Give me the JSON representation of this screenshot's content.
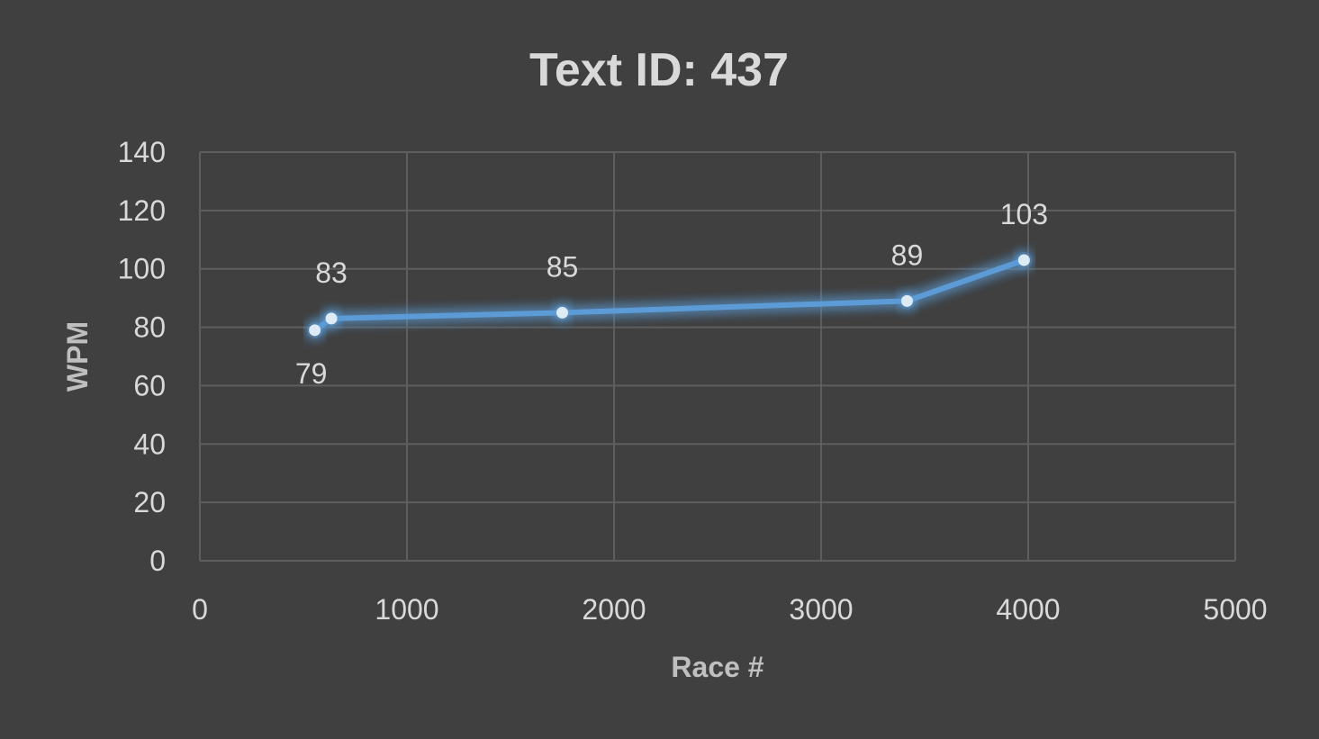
{
  "chart_data": {
    "type": "line",
    "title": "Text ID: 437",
    "xlabel": "Race #",
    "ylabel": "WPM",
    "xlim": [
      0,
      5000
    ],
    "ylim": [
      0,
      140
    ],
    "xticks": [
      "0",
      "1000",
      "2000",
      "3000",
      "4000",
      "5000"
    ],
    "yticks": [
      "0",
      "20",
      "40",
      "60",
      "80",
      "100",
      "120",
      "140"
    ],
    "grid": true,
    "series": [
      {
        "x": [
          555,
          635,
          1750,
          3415,
          3980
        ],
        "y": [
          79,
          83,
          85,
          89,
          103
        ],
        "labels": [
          "79",
          "83",
          "85",
          "89",
          "103"
        ],
        "label_positions": [
          "below",
          "above",
          "above",
          "above",
          "above"
        ],
        "color": "#5b9bd5"
      }
    ]
  }
}
